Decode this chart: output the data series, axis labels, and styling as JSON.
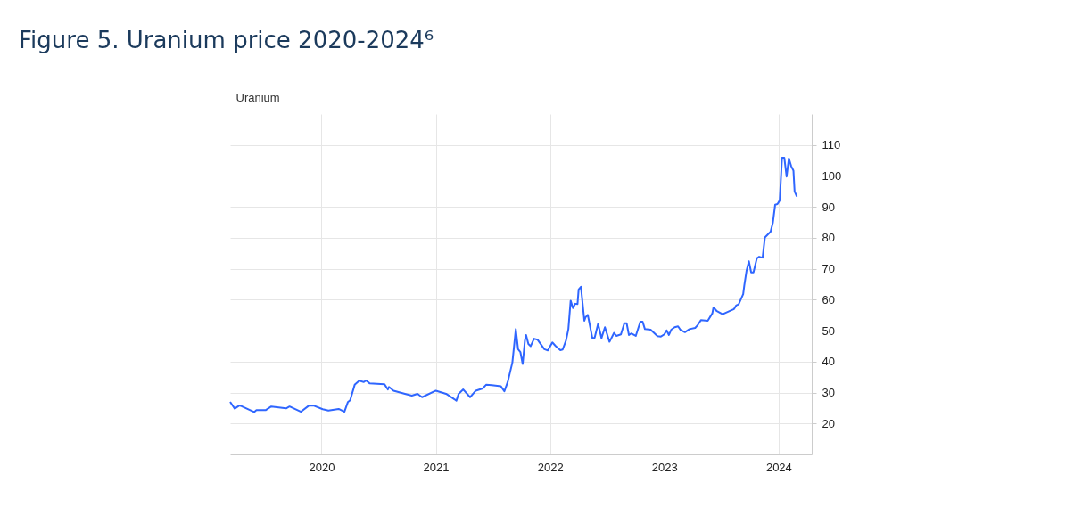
{
  "chart_data": {
    "type": "line",
    "title": "Figure 5. Uranium price 2020-2024⁶",
    "ylabel": "Uranium",
    "x": [
      2019.2,
      2019.24,
      2019.28,
      2019.3,
      2019.41,
      2019.43,
      2019.51,
      2019.56,
      2019.69,
      2019.72,
      2019.82,
      2019.89,
      2019.93,
      2020.01,
      2020.06,
      2020.15,
      2020.2,
      2020.23,
      2020.25,
      2020.29,
      2020.33,
      2020.37,
      2020.39,
      2020.42,
      2020.55,
      2020.58,
      2020.59,
      2020.63,
      2020.73,
      2020.79,
      2020.84,
      2020.88,
      2021.0,
      2021.09,
      2021.18,
      2021.2,
      2021.24,
      2021.3,
      2021.35,
      2021.41,
      2021.44,
      2021.49,
      2021.57,
      2021.6,
      2021.63,
      2021.67,
      2021.7,
      2021.72,
      2021.74,
      2021.76,
      2021.78,
      2021.79,
      2021.81,
      2021.83,
      2021.86,
      2021.89,
      2021.95,
      2021.98,
      2022.02,
      2022.05,
      2022.09,
      2022.11,
      2022.14,
      2022.16,
      2022.18,
      2022.2,
      2022.22,
      2022.24,
      2022.25,
      2022.27,
      2022.3,
      2022.31,
      2022.33,
      2022.37,
      2022.39,
      2022.42,
      2022.45,
      2022.48,
      2022.52,
      2022.56,
      2022.58,
      2022.62,
      2022.65,
      2022.67,
      2022.69,
      2022.71,
      2022.75,
      2022.79,
      2022.81,
      2022.83,
      2022.88,
      2022.94,
      2022.97,
      2023.0,
      2023.02,
      2023.04,
      2023.06,
      2023.09,
      2023.12,
      2023.14,
      2023.18,
      2023.22,
      2023.27,
      2023.29,
      2023.32,
      2023.38,
      2023.42,
      2023.43,
      2023.46,
      2023.51,
      2023.57,
      2023.61,
      2023.63,
      2023.65,
      2023.69,
      2023.7,
      2023.72,
      2023.74,
      2023.76,
      2023.78,
      2023.81,
      2023.83,
      2023.86,
      2023.88,
      2023.93,
      2023.95,
      2023.97,
      2023.99,
      2024.01,
      2024.03,
      2024.05,
      2024.07,
      2024.09,
      2024.11,
      2024.13,
      2024.14,
      2024.16
    ],
    "series": [
      {
        "color": "#2f66ff",
        "values": [
          27.0,
          24.8,
          25.8,
          25.6,
          23.7,
          24.3,
          24.3,
          25.5,
          24.9,
          25.5,
          23.8,
          25.8,
          25.8,
          24.6,
          24.2,
          24.7,
          23.8,
          26.9,
          27.5,
          32.5,
          33.8,
          33.4,
          33.9,
          33.0,
          32.7,
          31.0,
          31.8,
          30.6,
          29.6,
          29.0,
          29.6,
          28.5,
          30.6,
          29.6,
          27.4,
          29.6,
          31.0,
          28.5,
          30.6,
          31.3,
          32.5,
          32.4,
          32.0,
          30.4,
          33.5,
          39.7,
          50.5,
          44.0,
          43.1,
          39.2,
          46.9,
          48.6,
          45.7,
          45.0,
          47.4,
          47.1,
          44.0,
          43.6,
          46.2,
          45.0,
          43.7,
          43.9,
          46.9,
          50.5,
          59.7,
          57.3,
          58.7,
          58.6,
          63.3,
          64.2,
          53.2,
          54.3,
          55.1,
          47.6,
          47.7,
          52.2,
          47.6,
          51.1,
          46.4,
          49.3,
          48.3,
          48.8,
          52.4,
          52.4,
          48.6,
          49.1,
          48.3,
          52.9,
          52.9,
          50.5,
          50.3,
          48.2,
          48.1,
          48.8,
          50.1,
          48.6,
          50.3,
          51.1,
          51.4,
          50.3,
          49.5,
          50.5,
          50.9,
          51.7,
          53.4,
          53.2,
          55.6,
          57.5,
          56.3,
          55.3,
          56.3,
          57.0,
          58.2,
          58.5,
          61.8,
          64.7,
          69.5,
          72.4,
          68.8,
          68.8,
          73.4,
          73.9,
          73.6,
          80.1,
          82.0,
          84.9,
          90.7,
          90.9,
          92.1,
          105.9,
          105.9,
          99.8,
          105.7,
          103.2,
          101.7,
          95.0,
          93.3
        ]
      }
    ],
    "xlim": [
      2019.2,
      2024.29
    ],
    "xticks": [
      2020,
      2021,
      2022,
      2023,
      2024
    ],
    "ylim": [
      10,
      120
    ],
    "yticks": [
      20,
      30,
      40,
      50,
      60,
      70,
      80,
      90,
      100,
      110
    ],
    "grid": true,
    "marker": "none",
    "line_style": "solid"
  }
}
